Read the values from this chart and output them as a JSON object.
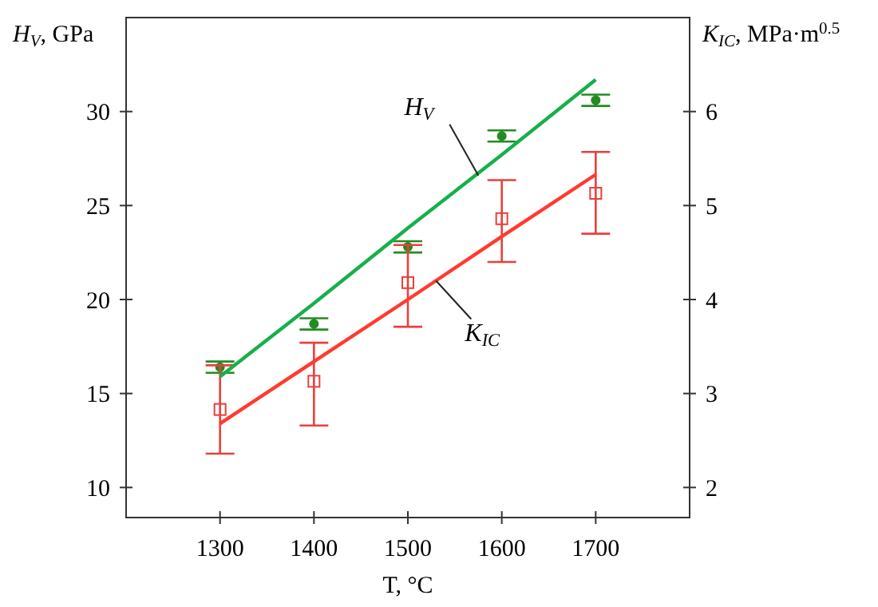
{
  "chart_data": {
    "type": "scatter",
    "xlabel": "T, °C",
    "ylabel": "H$_{V}$, GPa",
    "y2label": "K$_{IC}$, MPa·m$^{0.5}$",
    "x": [
      1300,
      1400,
      1500,
      1600,
      1700
    ],
    "xlim": [
      1200,
      1800
    ],
    "xticks": [
      1300,
      1400,
      1500,
      1600,
      1700
    ],
    "ylim": [
      8.4,
      35
    ],
    "yticks": [
      10,
      15,
      20,
      25,
      30
    ],
    "y2lim": [
      1.68,
      7
    ],
    "y2ticks": [
      2,
      3,
      4,
      5,
      6
    ],
    "grid": false,
    "series": [
      {
        "color": "#228b22",
        "marker": "circle",
        "values": [
          16.4,
          18.7,
          22.8,
          28.7,
          30.6
        ],
        "errors": [
          0.3,
          0.3,
          0.3,
          0.3,
          0.3
        ]
      },
      {
        "axis": "y2",
        "color": "#e8403a",
        "marker": "square",
        "values": [
          2.83,
          3.13,
          4.18,
          4.86,
          5.13
        ],
        "errors": [
          [
            2.36,
            3.3
          ],
          [
            2.66,
            3.54
          ],
          [
            3.71,
            4.58
          ],
          [
            4.4,
            5.27
          ],
          [
            4.7,
            5.57
          ]
        ]
      },
      {
        "type": "line",
        "color": "#16b04a",
        "values": [
          15.9,
          19.8,
          23.8,
          27.7,
          31.7
        ],
        "line_style": "solid"
      },
      {
        "type": "line",
        "axis": "y2",
        "color": "#ff3b2f",
        "values": [
          2.68,
          3.34,
          4.0,
          4.67,
          5.33
        ],
        "line_style": "solid"
      }
    ],
    "annotations": [
      {
        "text": "H$_{V}$",
        "x": 1575,
        "y": 26.6
      },
      {
        "text": "K$_{IC}$",
        "x": 1530,
        "y": 21.0
      }
    ]
  }
}
